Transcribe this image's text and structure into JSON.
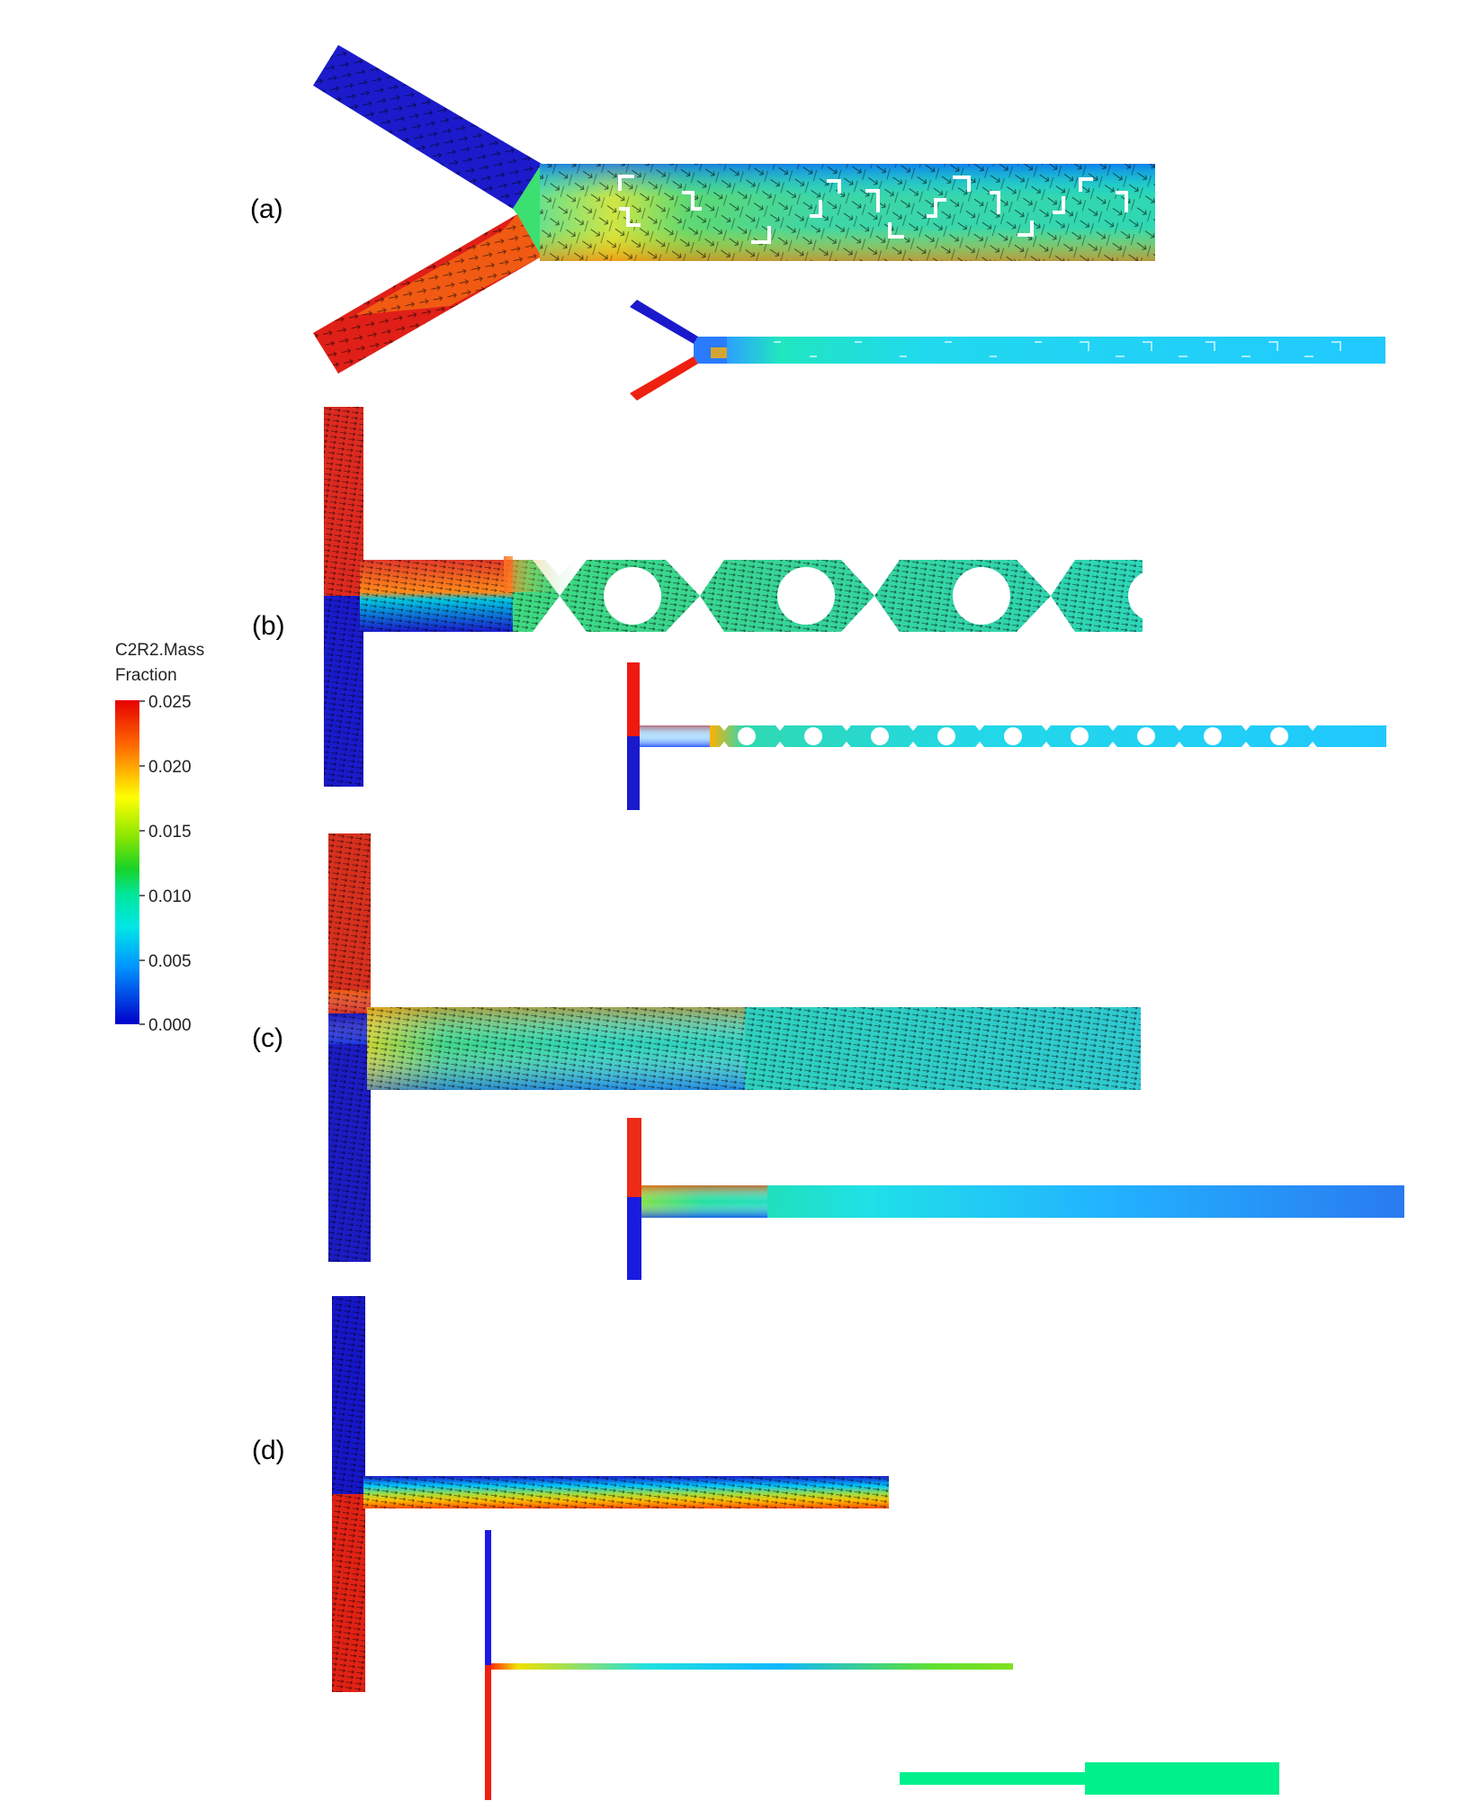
{
  "panels": [
    {
      "id": "a",
      "label": "(a)"
    },
    {
      "id": "b",
      "label": "(b)"
    },
    {
      "id": "c",
      "label": "(c)"
    },
    {
      "id": "d",
      "label": "(d)"
    }
  ],
  "colorbar": {
    "title_line1": "C2R2.Mass",
    "title_line2": "Fraction",
    "ticks": [
      "0.025",
      "0.020",
      "0.015",
      "0.010",
      "0.005",
      "0.000"
    ],
    "min": 0.0,
    "max": 0.025,
    "colormap": [
      "#0000cc",
      "#0055ff",
      "#00c8ff",
      "#00e6b4",
      "#33d61a",
      "#b4e600",
      "#ffe600",
      "#ff8c00",
      "#e60000"
    ]
  },
  "colors": {
    "low": "#1a1acc",
    "high": "#e01010",
    "mixed": "#33d9d0",
    "outlet_green": "#00f08c"
  }
}
